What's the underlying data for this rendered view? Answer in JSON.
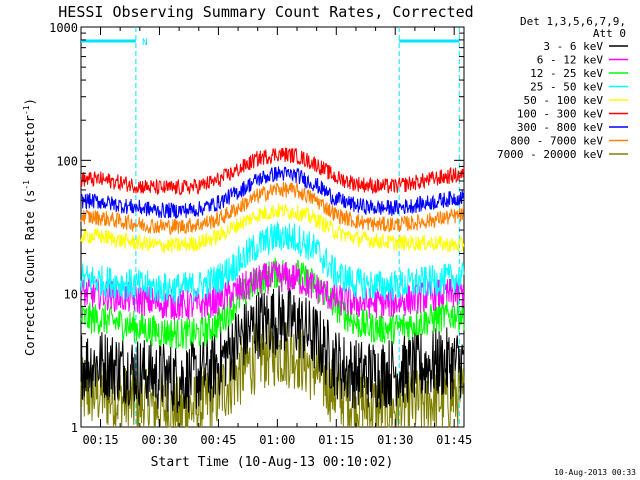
{
  "chart_data": {
    "type": "line",
    "title": "HESSI Observing Summary Count Rates, Corrected",
    "xlabel": "Start Time (10-Aug-13 00:10:02)",
    "ylabel_main": "Corrected Count Rate (s",
    "ylabel_sup1": "-1",
    "ylabel_mid": " detector",
    "ylabel_sup2": "-1",
    "ylabel_end": ")",
    "y_scale": "log",
    "ylim": [
      1,
      1000
    ],
    "y_ticks": [
      {
        "value": 1,
        "label": "1"
      },
      {
        "value": 10,
        "label": "10"
      },
      {
        "value": 100,
        "label": "100"
      },
      {
        "value": 1000,
        "label": "1000"
      }
    ],
    "xlim_minutes": [
      10.03,
      107.5
    ],
    "x_ticks": [
      {
        "minute": 15,
        "label": "00:15"
      },
      {
        "minute": 30,
        "label": "00:30"
      },
      {
        "minute": 45,
        "label": "00:45"
      },
      {
        "minute": 60,
        "label": "01:00"
      },
      {
        "minute": 75,
        "label": "01:15"
      },
      {
        "minute": 90,
        "label": "01:30"
      },
      {
        "minute": 105,
        "label": "01:45"
      }
    ],
    "legend_header": [
      "Det 1,3,5,6,7,9,",
      "Att 0"
    ],
    "legend_placement": "right",
    "footer_timestamp": "10-Aug-2013 00:33",
    "night_flag_label": "N",
    "night_intervals_minutes": [
      [
        10.03,
        24.0
      ],
      [
        91.0,
        106.3
      ]
    ],
    "sample_minutes": [
      10,
      15,
      20,
      25,
      30,
      35,
      40,
      45,
      50,
      55,
      60,
      65,
      70,
      75,
      80,
      85,
      90,
      95,
      100,
      105,
      107.5
    ],
    "series": [
      {
        "name": "3 - 6 keV",
        "color": "#000000",
        "values": [
          3.0,
          3.0,
          2.8,
          2.6,
          2.4,
          2.3,
          2.4,
          3.0,
          4.5,
          6.0,
          6.5,
          6.0,
          4.5,
          3.0,
          2.5,
          2.5,
          2.6,
          2.8,
          3.0,
          3.0,
          3.0
        ]
      },
      {
        "name": "6 - 12 keV",
        "color": "#ff00ff",
        "values": [
          10,
          10,
          9.5,
          9,
          8.5,
          8.2,
          8.2,
          9,
          10.5,
          12.5,
          13.5,
          13,
          11,
          9,
          8.5,
          8.5,
          8.6,
          9.2,
          9.8,
          10,
          10
        ]
      },
      {
        "name": "12 - 25 keV",
        "color": "#00ff00",
        "values": [
          6.5,
          6.5,
          6.0,
          5.5,
          5.2,
          5.0,
          5.0,
          6.0,
          9.0,
          12.5,
          14.5,
          14.0,
          11.5,
          8.0,
          6.0,
          5.5,
          5.5,
          6.0,
          6.5,
          7.0,
          7.0
        ]
      },
      {
        "name": "25 - 50 keV",
        "color": "#00ffff",
        "values": [
          13,
          12.5,
          12,
          11.5,
          11,
          11,
          11.3,
          13,
          17,
          23,
          27,
          26,
          21,
          14,
          12,
          11.5,
          11.5,
          12,
          12.5,
          13,
          13
        ]
      },
      {
        "name": "50 - 100 keV",
        "color": "#ffff00",
        "values": [
          27,
          27,
          25,
          24,
          23,
          23,
          24,
          27,
          33,
          39,
          42,
          41,
          36,
          29,
          26,
          25,
          24,
          24,
          24,
          23,
          23
        ]
      },
      {
        "name": "100 - 300 keV",
        "color": "#ff0000",
        "values": [
          72,
          72,
          68,
          64,
          62,
          62,
          64,
          71,
          85,
          103,
          112,
          108,
          93,
          74,
          67,
          64,
          64,
          68,
          73,
          77,
          78
        ]
      },
      {
        "name": "300 - 800 keV",
        "color": "#0000ff",
        "values": [
          50,
          49,
          46,
          44,
          42,
          42,
          43,
          48,
          58,
          72,
          80,
          77,
          65,
          51,
          46,
          44,
          44,
          46,
          49,
          52,
          53
        ]
      },
      {
        "name": "800 - 7000 keV",
        "color": "#ff8000",
        "values": [
          38,
          37,
          35,
          33,
          32,
          32,
          33,
          36,
          44,
          54,
          61,
          59,
          50,
          39,
          35,
          33,
          33,
          34,
          36,
          38,
          39
        ]
      },
      {
        "name": "7000 - 20000 keV",
        "color": "#808000",
        "values": [
          1.8,
          1.8,
          1.6,
          1.5,
          1.4,
          1.3,
          1.4,
          1.8,
          2.5,
          3.4,
          3.7,
          3.5,
          2.6,
          1.8,
          1.5,
          1.4,
          1.4,
          1.5,
          1.6,
          1.7,
          1.7
        ]
      }
    ],
    "colors": {
      "axis": "#000000",
      "background": "#ffffff",
      "night_flag": "#00e5ff"
    }
  }
}
